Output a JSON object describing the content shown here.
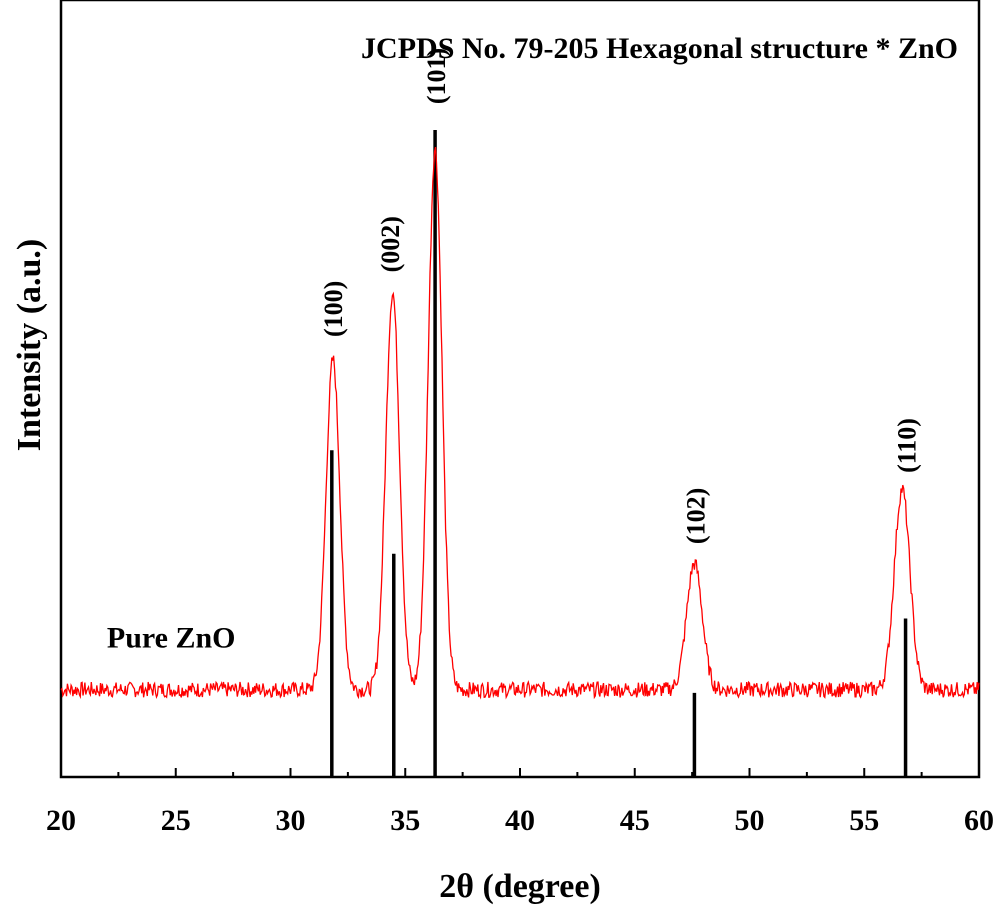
{
  "chart_data": {
    "type": "line",
    "title": "JCPDS No. 79-205 Hexagonal structure * ZnO",
    "xlabel": "2θ (degree)",
    "ylabel": "Intensity (a.u.)",
    "xlim": [
      20,
      60
    ],
    "ylim": [
      0,
      100
    ],
    "x_ticks": [
      "20",
      "25",
      "30",
      "35",
      "40",
      "45",
      "50",
      "55",
      "60"
    ],
    "y_ticks_shown": false,
    "grid": false,
    "series": [
      {
        "name": "Pure ZnO",
        "color": "#ff0000",
        "baseline": 13.5,
        "peaks": [
          {
            "x": 31.85,
            "y": 64.5
          },
          {
            "x": 34.45,
            "y": 75.0
          },
          {
            "x": 36.3,
            "y": 97.0
          },
          {
            "x": 47.6,
            "y": 33.0
          },
          {
            "x": 56.65,
            "y": 44.5
          }
        ]
      }
    ],
    "reference_lines": {
      "name": "JCPDS No. 79-205",
      "color": "#000000",
      "lines": [
        {
          "x": 31.8,
          "y": 50.5
        },
        {
          "x": 34.5,
          "y": 34.5
        },
        {
          "x": 36.3,
          "y": 100.0
        },
        {
          "x": 47.6,
          "y": 13.0
        },
        {
          "x": 56.8,
          "y": 24.5
        }
      ]
    },
    "peak_labels": [
      {
        "text": "(100)",
        "x": 31.8,
        "y": 68
      },
      {
        "text": "(002)",
        "x": 34.3,
        "y": 78
      },
      {
        "text": "(101)",
        "x": 36.3,
        "y": 104
      },
      {
        "text": "(102)",
        "x": 47.6,
        "y": 36
      },
      {
        "text": "(110)",
        "x": 56.8,
        "y": 47
      }
    ],
    "series_label": {
      "text": "Pure ZnO",
      "x": 22,
      "y": 20
    }
  }
}
